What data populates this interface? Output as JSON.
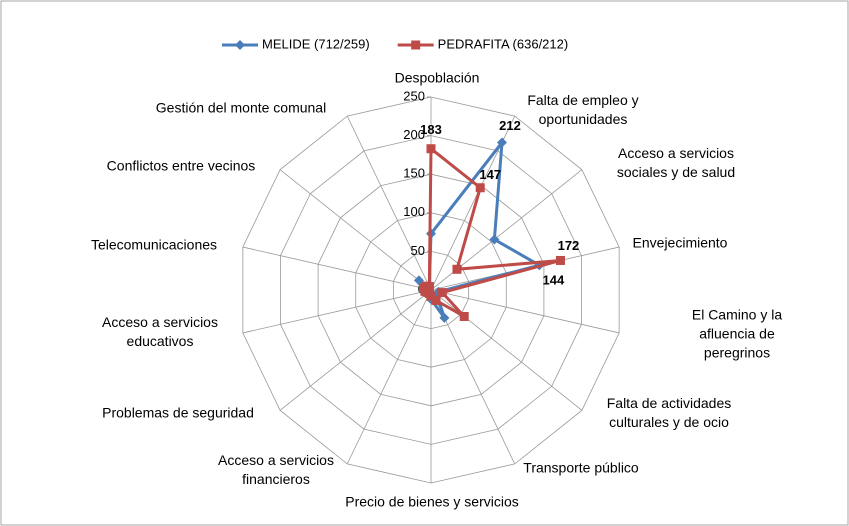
{
  "chart_data": {
    "type": "radar",
    "categories": [
      "Despoblación",
      "Falta de empleo y oportunidades",
      "Acceso a servicios sociales y de salud",
      "Envejecimiento",
      "El Camino y la afluencia de peregrinos",
      "Falta de actividades culturales y de ocio",
      "Transporte público",
      "Precio de bienes y servicios",
      "Acceso a servicios financieros",
      "Problemas de seguridad",
      "Acceso a servicios educativos",
      "Telecomunicaciones",
      "Conflictos entre vecinos",
      "Gestión del monte comunal"
    ],
    "series": [
      {
        "name": "MELIDE (712/259)",
        "color": "#4a7ebb",
        "marker": "diamond",
        "values": [
          73,
          212,
          105,
          144,
          10,
          10,
          40,
          12,
          5,
          5,
          10,
          8,
          20,
          5
        ],
        "value_labels": [
          null,
          212,
          null,
          144,
          null,
          null,
          null,
          null,
          null,
          null,
          null,
          null,
          null,
          null
        ]
      },
      {
        "name": "PEDRAFITA (636/212)",
        "color": "#be4b48",
        "marker": "square",
        "values": [
          183,
          147,
          43,
          172,
          15,
          55,
          15,
          8,
          5,
          5,
          8,
          10,
          8,
          5
        ],
        "value_labels": [
          183,
          147,
          null,
          172,
          null,
          null,
          null,
          null,
          null,
          null,
          null,
          null,
          null,
          null
        ]
      }
    ],
    "ylim": [
      0,
      250
    ],
    "yticks": [
      0,
      50,
      100,
      150,
      200,
      250
    ],
    "grid": true,
    "legend": "top"
  }
}
